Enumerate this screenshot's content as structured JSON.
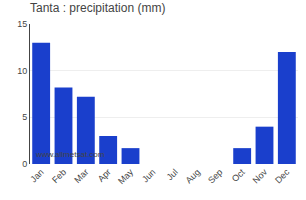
{
  "chart_data": {
    "type": "bar",
    "title": "Tanta : precipitation (mm)",
    "categories": [
      "Jan",
      "Feb",
      "Mar",
      "Apr",
      "May",
      "Jun",
      "Jul",
      "Aug",
      "Sep",
      "Oct",
      "Nov",
      "Dec"
    ],
    "values": [
      13,
      8.2,
      7.2,
      3.0,
      1.7,
      0.0,
      0.0,
      0.0,
      0.0,
      1.7,
      4.0,
      12.0
    ],
    "color": "#1a3fcc",
    "ylim": [
      0,
      15
    ],
    "yticks": [
      0,
      5,
      10,
      15
    ],
    "grid": true,
    "annotations": [
      "www.allmetsat.com"
    ]
  }
}
